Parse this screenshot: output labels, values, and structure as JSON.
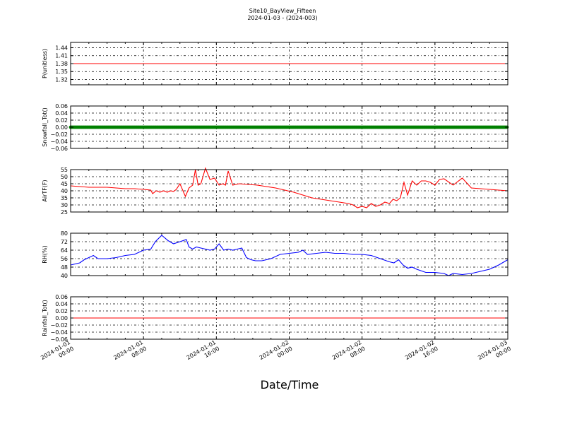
{
  "title": "Site10_BayView_Fifteen",
  "subtitle": "2024-01-03 - (2024-003)",
  "xlabel": "Date/Time",
  "x_ticks": [
    [
      "2024-01-01",
      "00:00"
    ],
    [
      "2024-01-01",
      "08:00"
    ],
    [
      "2024-01-01",
      "16:00"
    ],
    [
      "2024-01-02",
      "00:00"
    ],
    [
      "2024-01-02",
      "08:00"
    ],
    [
      "2024-01-02",
      "16:00"
    ],
    [
      "2024-01-03",
      "00:00"
    ]
  ],
  "colors": {
    "red": "#ff0000",
    "green": "#008000",
    "blue": "#0000ff",
    "axis": "#000000"
  },
  "chart_data": [
    {
      "type": "line",
      "ylabel": "P(unitless)",
      "ylim": [
        1.3,
        1.46
      ],
      "yticks": [
        "1.44",
        "1.41",
        "1.38",
        "1.35",
        "1.32"
      ],
      "ytick_values": [
        1.44,
        1.41,
        1.38,
        1.35,
        1.32
      ],
      "grid": true,
      "color": "red",
      "x_hours": [
        0,
        48
      ],
      "y": [
        1.38,
        1.38
      ]
    },
    {
      "type": "line",
      "ylabel": "Snowfall_Tot()",
      "ylim": [
        -0.06,
        0.06
      ],
      "yticks": [
        "0.06",
        "0.04",
        "0.02",
        "0.00",
        "−0.02",
        "−0.04",
        "−0.06"
      ],
      "ytick_values": [
        0.06,
        0.04,
        0.02,
        0.0,
        -0.02,
        -0.04,
        -0.06
      ],
      "grid": true,
      "color": "green",
      "markers": true,
      "x_hours": [
        0,
        48
      ],
      "y": [
        0,
        0
      ]
    },
    {
      "type": "line",
      "ylabel": "AirTF(F)",
      "ylim": [
        25,
        55
      ],
      "yticks": [
        "55",
        "50",
        "45",
        "40",
        "35",
        "30",
        "25"
      ],
      "ytick_values": [
        55,
        50,
        45,
        40,
        35,
        30,
        25
      ],
      "grid": true,
      "color": "red",
      "x_hours": [
        0,
        1,
        2,
        3,
        4,
        5,
        6,
        7,
        8,
        8.8,
        9,
        9.4,
        9.8,
        10.2,
        10.6,
        11,
        11.3,
        11.6,
        12,
        12.6,
        13,
        13.4,
        13.7,
        14,
        14.3,
        14.8,
        15.3,
        15.8,
        16.3,
        16.7,
        17,
        17.3,
        17.8,
        18.5,
        19.5,
        20.5,
        21.5,
        22.5,
        23.5,
        24.5,
        25.5,
        26.5,
        27.5,
        28.5,
        29.5,
        30.5,
        31,
        31.5,
        32,
        32.5,
        33,
        33.5,
        34,
        34.5,
        35,
        35.4,
        35.8,
        36.2,
        36.6,
        37,
        37.5,
        38,
        38.5,
        39,
        39.5,
        40,
        40.5,
        41,
        42,
        43,
        44,
        45,
        46,
        47,
        48
      ],
      "y": [
        43.5,
        43,
        42.5,
        42.5,
        42.5,
        42,
        41.5,
        41.5,
        41,
        40.5,
        38,
        40,
        39,
        40,
        39,
        40,
        39.5,
        41,
        45,
        36,
        42,
        44,
        55,
        44,
        45,
        56,
        48,
        49,
        44,
        45,
        44,
        54,
        44,
        45,
        44.5,
        44,
        43,
        42,
        40.5,
        39,
        37,
        35,
        34,
        33,
        32,
        31,
        30,
        28,
        29,
        28,
        31,
        29,
        30,
        32,
        31,
        34,
        33,
        35,
        46,
        37,
        47,
        44,
        47,
        47,
        46,
        44,
        48,
        48.5,
        44,
        49,
        42,
        41.5,
        41,
        40.5,
        40
      ]
    },
    {
      "type": "line",
      "ylabel": "RH(%)",
      "ylim": [
        40,
        80
      ],
      "yticks": [
        "80",
        "72",
        "64",
        "56",
        "48",
        "40"
      ],
      "ytick_values": [
        80,
        72,
        64,
        56,
        48,
        40
      ],
      "grid": true,
      "color": "blue",
      "x_hours": [
        0,
        1,
        1.5,
        2,
        2.5,
        3,
        4,
        5,
        6,
        7,
        8,
        8.8,
        9.3,
        10,
        10.7,
        11.3,
        12,
        12.7,
        13,
        13.4,
        13.8,
        14.3,
        14.8,
        15.3,
        15.8,
        16.3,
        16.8,
        17.3,
        17.8,
        18.3,
        18.8,
        19.3,
        19.8,
        20.3,
        21,
        22,
        23,
        24,
        25,
        25.5,
        26,
        27,
        28,
        29,
        30,
        31,
        32,
        33,
        34,
        35,
        35.5,
        36,
        36.5,
        37,
        37.5,
        38,
        39,
        40,
        41,
        41.5,
        42,
        43,
        44,
        45,
        46,
        47,
        48
      ],
      "y": [
        50,
        52,
        55,
        57,
        59,
        56,
        56,
        57,
        59,
        60,
        64,
        65,
        72,
        78,
        73,
        70,
        72,
        74,
        67,
        65,
        67,
        66,
        65,
        64,
        65,
        70,
        64,
        65,
        64,
        65,
        66,
        57,
        55,
        54,
        54,
        56,
        60,
        61,
        62,
        64,
        60,
        61,
        62,
        61,
        61,
        60,
        60,
        59,
        56,
        53,
        52,
        55,
        50,
        47,
        48,
        46,
        43,
        43,
        42,
        40,
        42,
        41,
        42,
        44,
        46,
        50,
        55
      ]
    },
    {
      "type": "line",
      "ylabel": "Rainfall_Tot()",
      "ylim": [
        -0.06,
        0.06
      ],
      "yticks": [
        "0.06",
        "0.04",
        "0.02",
        "0.00",
        "−0.02",
        "−0.04",
        "−0.06"
      ],
      "ytick_values": [
        0.06,
        0.04,
        0.02,
        0.0,
        -0.02,
        -0.04,
        -0.06
      ],
      "grid": true,
      "color": "red",
      "x_hours": [
        0,
        48
      ],
      "y": [
        0,
        0
      ]
    }
  ]
}
